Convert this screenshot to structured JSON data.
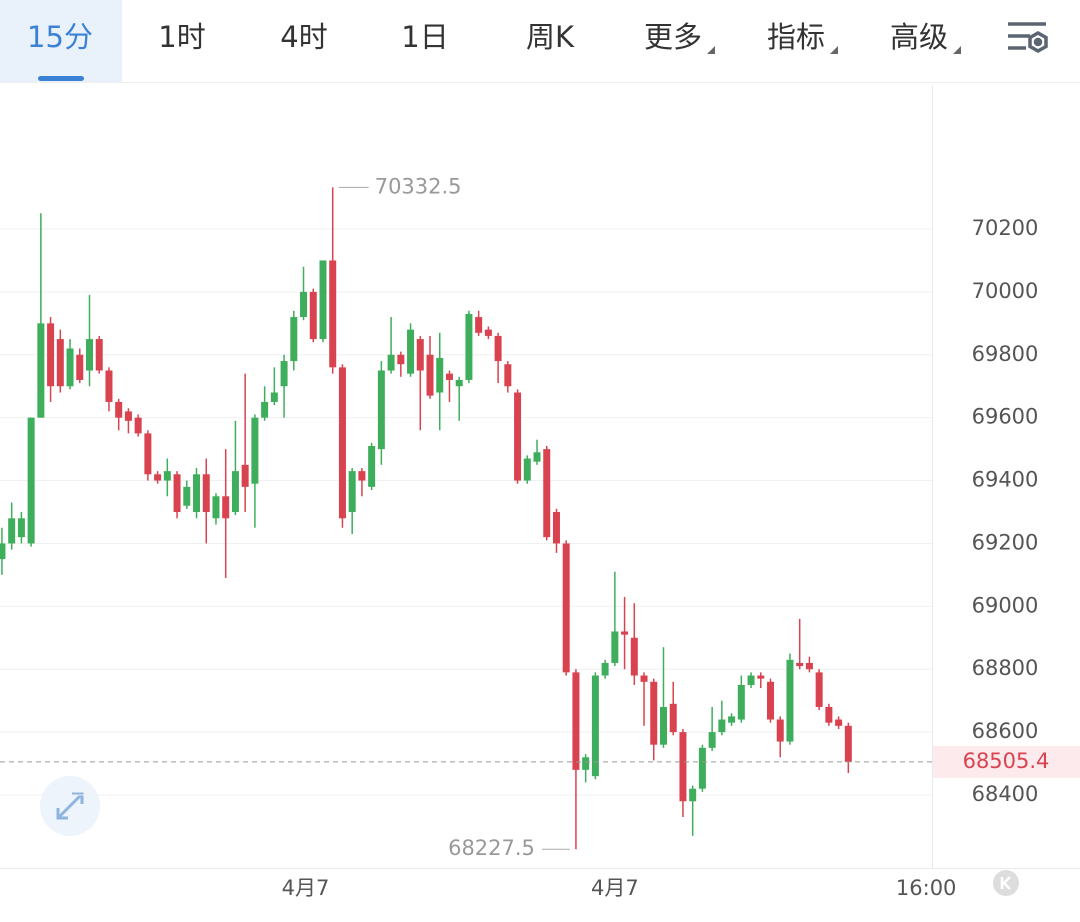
{
  "tabs": {
    "items": [
      "15分",
      "1时",
      "4时",
      "1日",
      "周K",
      "更多",
      "指标",
      "高级"
    ],
    "active": 0
  },
  "chart_data": {
    "type": "candlestick",
    "series": {
      "open": [
        69150,
        69200,
        69220,
        69200,
        69600,
        69900,
        69850,
        69700,
        69800,
        69750,
        69850,
        69750,
        69650,
        69620,
        69600,
        69550,
        69420,
        69400,
        69420,
        69320,
        69300,
        69420,
        69280,
        69350,
        69300,
        69450,
        69390,
        69600,
        69650,
        69700,
        69780,
        69920,
        70000,
        69850,
        70100,
        69760,
        69300,
        69430,
        69380,
        69500,
        69750,
        69800,
        69740,
        69850,
        69800,
        69680,
        69740,
        69700,
        69720,
        69920,
        69880,
        69860,
        69770,
        69680,
        69400,
        69460,
        69500,
        69300,
        69200,
        68790,
        68480,
        68460,
        68780,
        68820,
        68920,
        68900,
        68780,
        68760,
        68560,
        68690,
        68600,
        68380,
        68420,
        68550,
        68600,
        68630,
        68640,
        68750,
        68780,
        68760,
        68640,
        68570,
        68820,
        68820,
        68790,
        68680,
        68640,
        68620
      ],
      "high": [
        69250,
        69330,
        69300,
        69600,
        70250,
        69920,
        69880,
        69850,
        69820,
        69990,
        69860,
        69760,
        69660,
        69630,
        69610,
        69560,
        69430,
        69470,
        69430,
        69400,
        69440,
        69470,
        69360,
        69500,
        69590,
        69740,
        69610,
        69700,
        69760,
        69800,
        69940,
        70080,
        70010,
        70100,
        70332.5,
        69770,
        69440,
        69440,
        69520,
        69780,
        69920,
        69810,
        69900,
        69860,
        69860,
        69870,
        69750,
        69730,
        69940,
        69940,
        69890,
        69870,
        69780,
        69690,
        69480,
        69530,
        69510,
        69310,
        69210,
        68800,
        68530,
        68790,
        68830,
        69110,
        69030,
        69010,
        68790,
        68770,
        68870,
        68760,
        68610,
        68430,
        68560,
        68680,
        68700,
        68660,
        68780,
        68790,
        68790,
        68770,
        68650,
        68850,
        68960,
        68840,
        68800,
        68690,
        68650,
        68630
      ],
      "low": [
        69100,
        69180,
        69200,
        69190,
        69600,
        69650,
        69680,
        69690,
        69710,
        69700,
        69740,
        69620,
        69560,
        69550,
        69540,
        69400,
        69390,
        69350,
        69280,
        69310,
        69280,
        69200,
        69260,
        69090,
        69290,
        69300,
        69250,
        69590,
        69640,
        69600,
        69750,
        69910,
        69840,
        69840,
        69740,
        69250,
        69230,
        69350,
        69370,
        69450,
        69740,
        69730,
        69730,
        69560,
        69660,
        69560,
        69650,
        69590,
        69710,
        69860,
        69850,
        69710,
        69680,
        69390,
        69390,
        69450,
        69210,
        69170,
        68780,
        68227.5,
        68440,
        68450,
        68770,
        68810,
        68800,
        68750,
        68620,
        68510,
        68550,
        68590,
        68330,
        68270,
        68410,
        68540,
        68590,
        68620,
        68630,
        68740,
        68740,
        68630,
        68520,
        68560,
        68800,
        68790,
        68670,
        68620,
        68610,
        68470
      ],
      "close": [
        69200,
        69280,
        69280,
        69600,
        69900,
        69700,
        69700,
        69820,
        69720,
        69850,
        69750,
        69650,
        69600,
        69590,
        69550,
        69420,
        69400,
        69430,
        69300,
        69380,
        69420,
        69300,
        69350,
        69280,
        69430,
        69380,
        69600,
        69650,
        69680,
        69780,
        69920,
        70000,
        69850,
        70100,
        69760,
        69280,
        69430,
        69400,
        69510,
        69750,
        69800,
        69770,
        69880,
        69750,
        69670,
        69790,
        69720,
        69720,
        69930,
        69870,
        69860,
        69780,
        69700,
        69400,
        69470,
        69490,
        69220,
        69200,
        68790,
        68480,
        68520,
        68780,
        68820,
        68920,
        68910,
        68780,
        68760,
        68560,
        68680,
        68600,
        68380,
        68420,
        68550,
        68600,
        68640,
        68650,
        68750,
        68780,
        68770,
        68640,
        68570,
        68830,
        68810,
        68800,
        68680,
        68630,
        68620,
        68505.4
      ]
    },
    "up_color": "#3fae5c",
    "down_color": "#d9434f",
    "xlim": [
      -0.2,
      95.6
    ],
    "xticks": [
      {
        "value": 31.2,
        "label": "4月7"
      },
      {
        "value": 63,
        "label": "4月7"
      },
      {
        "value": 95,
        "label": "16:00"
      }
    ],
    "ylim": [
      68171,
      70658
    ],
    "yticks": [
      68400,
      68600,
      68800,
      69000,
      69200,
      69400,
      69600,
      69800,
      70000,
      70200
    ],
    "grid": true,
    "high_label": 70332.5,
    "low_label": 68227.5,
    "last_price": 68505.4
  }
}
